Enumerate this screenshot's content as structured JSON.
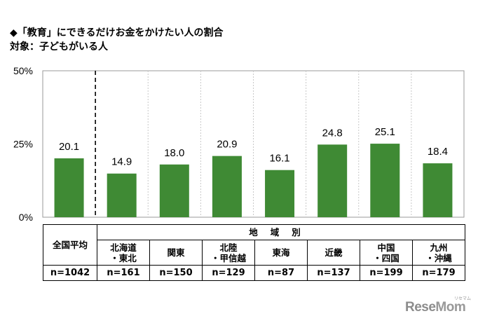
{
  "title": "◆「教育」にできるだけお金をかけたい人の割合",
  "subtitle": "対象：子どもがいる人",
  "chart_data": {
    "type": "bar",
    "title": "◆「教育」にできるだけお金をかけたい人の割合",
    "subtitle": "対象：子どもがいる人",
    "categories": [
      "全国平均",
      "北海道・東北",
      "関東",
      "北陸・甲信越",
      "東海",
      "近畿",
      "中国・四国",
      "九州・沖縄"
    ],
    "values": [
      20.1,
      14.9,
      18.0,
      20.9,
      16.1,
      24.8,
      25.1,
      18.4
    ],
    "value_labels": [
      "20.1",
      "14.9",
      "18.0",
      "20.9",
      "16.1",
      "24.8",
      "25.1",
      "18.4"
    ],
    "ylim": [
      0,
      50
    ],
    "yticks": [
      0,
      25,
      50
    ],
    "ytick_labels": [
      "0%",
      "25%",
      "50%"
    ],
    "bar_color": "#3f8a34",
    "grid": "vertical dotted separators",
    "legend": "none"
  },
  "table": {
    "region_header": "地域別",
    "col1_header": "全国平均",
    "regions": [
      {
        "line1": "北海道",
        "line2": "・東北"
      },
      {
        "line1": "関東",
        "line2": ""
      },
      {
        "line1": "北陸",
        "line2": "・甲信越"
      },
      {
        "line1": "東海",
        "line2": ""
      },
      {
        "line1": "近畿",
        "line2": ""
      },
      {
        "line1": "中国",
        "line2": "・四国"
      },
      {
        "line1": "九州",
        "line2": "・沖縄"
      }
    ],
    "n_values": [
      "n=1042",
      "n=161",
      "n=150",
      "n=129",
      "n=87",
      "n=137",
      "n=199",
      "n=179"
    ]
  },
  "watermark": {
    "text_a": "Rese",
    "text_b": "Mom",
    "tag": "リセマム"
  }
}
